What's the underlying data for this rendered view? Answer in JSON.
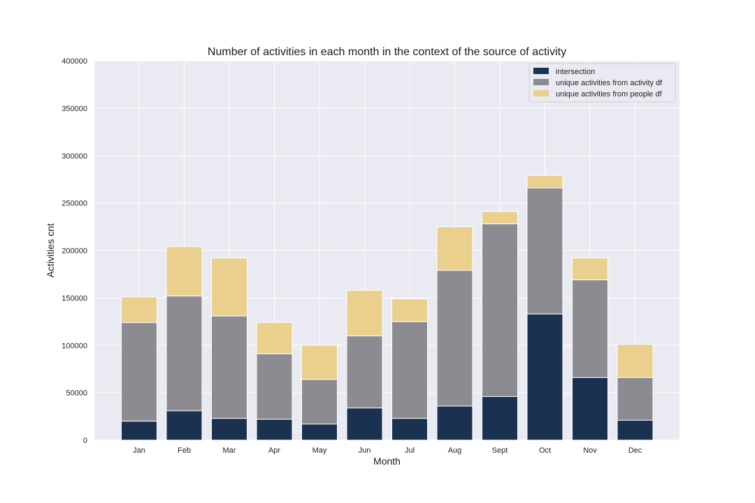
{
  "chart_data": {
    "type": "bar",
    "stacked": true,
    "title": "Number of activities in each month in the context of the source of activity",
    "xlabel": "Month",
    "ylabel": "Activities cnt",
    "categories": [
      "Jan",
      "Feb",
      "Mar",
      "Apr",
      "May",
      "Jun",
      "Jul",
      "Aug",
      "Sept",
      "Oct",
      "Nov",
      "Dec"
    ],
    "ylim": [
      0,
      400000
    ],
    "yticks": [
      "0",
      "50000",
      "100000",
      "150000",
      "200000",
      "250000",
      "300000",
      "350000",
      "400000"
    ],
    "grid": true,
    "legend_position": "top-right",
    "series": [
      {
        "name": "intersection",
        "color": "#1a3150",
        "values": [
          20000,
          31000,
          23000,
          22000,
          17000,
          34000,
          23000,
          36000,
          46000,
          133000,
          66000,
          21000
        ]
      },
      {
        "name": "unique activities from activity df",
        "color": "#8c8b92",
        "values": [
          104000,
          121000,
          108000,
          69000,
          47000,
          76000,
          102000,
          143000,
          182000,
          133000,
          103000,
          45000
        ]
      },
      {
        "name": "unique activities from people df",
        "color": "#ebcf8c",
        "values": [
          27000,
          52000,
          61000,
          33000,
          36000,
          48000,
          24000,
          46000,
          13000,
          13000,
          23000,
          35000
        ]
      }
    ],
    "colors": {
      "plot_background": "#eaeaf2",
      "grid": "#ffffff"
    }
  }
}
